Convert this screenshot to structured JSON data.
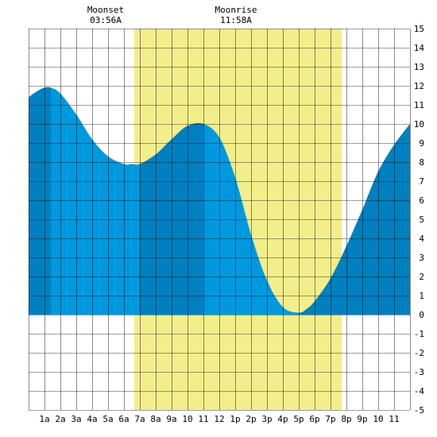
{
  "header": {
    "moonset_label": "Moonset",
    "moonset_time": "03:56A",
    "moonrise_label": "Moonrise",
    "moonrise_time": "11:58A"
  },
  "chart_data": {
    "type": "area",
    "title": "",
    "xlabel": "",
    "ylabel": "",
    "xlim": [
      0,
      24
    ],
    "ylim": [
      -5,
      15
    ],
    "x_tick_labels": [
      "1a",
      "2a",
      "3a",
      "4a",
      "5a",
      "6a",
      "7a",
      "8a",
      "9a",
      "10",
      "11",
      "12",
      "1p",
      "2p",
      "3p",
      "4p",
      "5p",
      "6p",
      "7p",
      "8p",
      "9p",
      "10",
      "11"
    ],
    "y_tick_labels": [
      "-5",
      "-4",
      "-3",
      "-2",
      "-1",
      "0",
      "1",
      "2",
      "3",
      "4",
      "5",
      "6",
      "7",
      "8",
      "9",
      "10",
      "11",
      "12",
      "13",
      "14",
      "15"
    ],
    "grid": true,
    "daylight": {
      "start_hour": 6.65,
      "end_hour": 19.7,
      "color": "#f2ee8c"
    },
    "fill_colors": {
      "light": "#0099e0",
      "dark": "#0080c0"
    },
    "dark_bands": [
      [
        0,
        1.4
      ],
      [
        6.98,
        10.98
      ],
      [
        17.0,
        24
      ]
    ],
    "series": [
      {
        "x": [
          0,
          0.5,
          1,
          1.4,
          2,
          3,
          4,
          5,
          6,
          6.5,
          7,
          8,
          9,
          10,
          11,
          12,
          13,
          14,
          15,
          16,
          17,
          17.5,
          18,
          19,
          20,
          21,
          22,
          23,
          24
        ],
        "y": [
          11.4,
          11.7,
          11.9,
          11.9,
          11.6,
          10.5,
          9.2,
          8.3,
          7.9,
          7.9,
          7.9,
          8.4,
          9.2,
          9.9,
          10.0,
          9.3,
          7.2,
          4.2,
          1.8,
          0.4,
          0.1,
          0.3,
          0.7,
          1.9,
          3.6,
          5.5,
          7.5,
          8.9,
          10.0
        ]
      }
    ]
  }
}
